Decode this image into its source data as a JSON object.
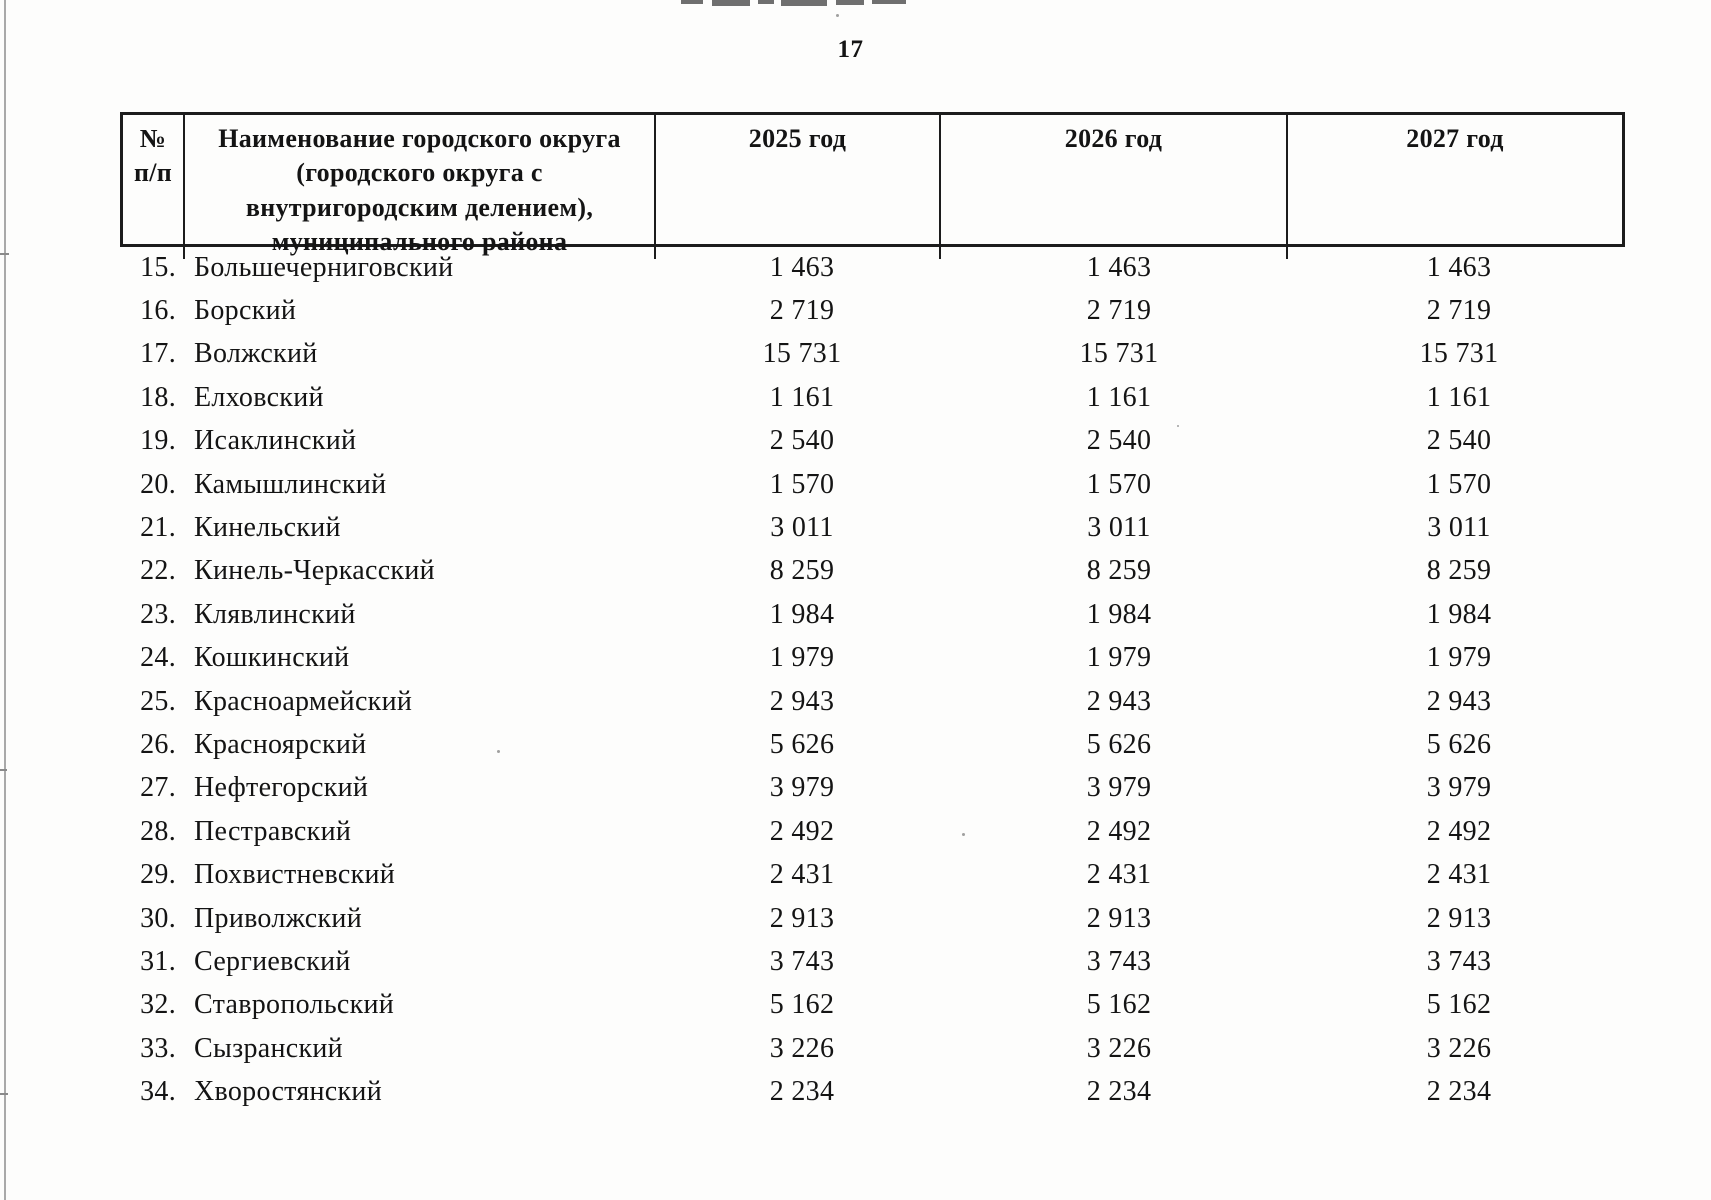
{
  "page": {
    "number": "17"
  },
  "table": {
    "header": {
      "num": "№\nп/п",
      "name": "Наименование городского округа\n(городского округа с\nвнутригородским делением),\nмуниципального района",
      "year2025": "2025 год",
      "year2026": "2026 год",
      "year2027": "2027 год"
    },
    "rows": [
      {
        "num": "15.",
        "name": "Большечерниговский",
        "v2025": "1 463",
        "v2026": "1 463",
        "v2027": "1 463"
      },
      {
        "num": "16.",
        "name": "Борский",
        "v2025": "2 719",
        "v2026": "2 719",
        "v2027": "2 719"
      },
      {
        "num": "17.",
        "name": "Волжский",
        "v2025": "15 731",
        "v2026": "15 731",
        "v2027": "15 731"
      },
      {
        "num": "18.",
        "name": "Елховский",
        "v2025": "1 161",
        "v2026": "1 161",
        "v2027": "1 161"
      },
      {
        "num": "19.",
        "name": "Исаклинский",
        "v2025": "2 540",
        "v2026": "2 540",
        "v2027": "2 540"
      },
      {
        "num": "20.",
        "name": "Камышлинский",
        "v2025": "1 570",
        "v2026": "1 570",
        "v2027": "1 570"
      },
      {
        "num": "21.",
        "name": "Кинельский",
        "v2025": "3 011",
        "v2026": "3 011",
        "v2027": "3 011"
      },
      {
        "num": "22.",
        "name": "Кинель-Черкасский",
        "v2025": "8 259",
        "v2026": "8 259",
        "v2027": "8 259"
      },
      {
        "num": "23.",
        "name": "Клявлинский",
        "v2025": "1 984",
        "v2026": "1 984",
        "v2027": "1 984"
      },
      {
        "num": "24.",
        "name": "Кошкинский",
        "v2025": "1 979",
        "v2026": "1 979",
        "v2027": "1 979"
      },
      {
        "num": "25.",
        "name": "Красноармейский",
        "v2025": "2 943",
        "v2026": "2 943",
        "v2027": "2 943"
      },
      {
        "num": "26.",
        "name": "Красноярский",
        "v2025": "5 626",
        "v2026": "5 626",
        "v2027": "5 626"
      },
      {
        "num": "27.",
        "name": "Нефтегорский",
        "v2025": "3 979",
        "v2026": "3 979",
        "v2027": "3 979"
      },
      {
        "num": "28.",
        "name": "Пестравский",
        "v2025": "2 492",
        "v2026": "2 492",
        "v2027": "2 492"
      },
      {
        "num": "29.",
        "name": "Похвистневский",
        "v2025": "2 431",
        "v2026": "2 431",
        "v2027": "2 431"
      },
      {
        "num": "30.",
        "name": "Приволжский",
        "v2025": "2 913",
        "v2026": "2 913",
        "v2027": "2 913"
      },
      {
        "num": "31.",
        "name": "Сергиевский",
        "v2025": "3 743",
        "v2026": "3 743",
        "v2027": "3 743"
      },
      {
        "num": "32.",
        "name": "Ставропольский",
        "v2025": "5 162",
        "v2026": "5 162",
        "v2027": "5 162"
      },
      {
        "num": "33.",
        "name": "Сызранский",
        "v2025": "3 226",
        "v2026": "3 226",
        "v2027": "3 226"
      },
      {
        "num": "34.",
        "name": "Хворостянский",
        "v2025": "2 234",
        "v2026": "2 234",
        "v2027": "2 234"
      }
    ]
  }
}
